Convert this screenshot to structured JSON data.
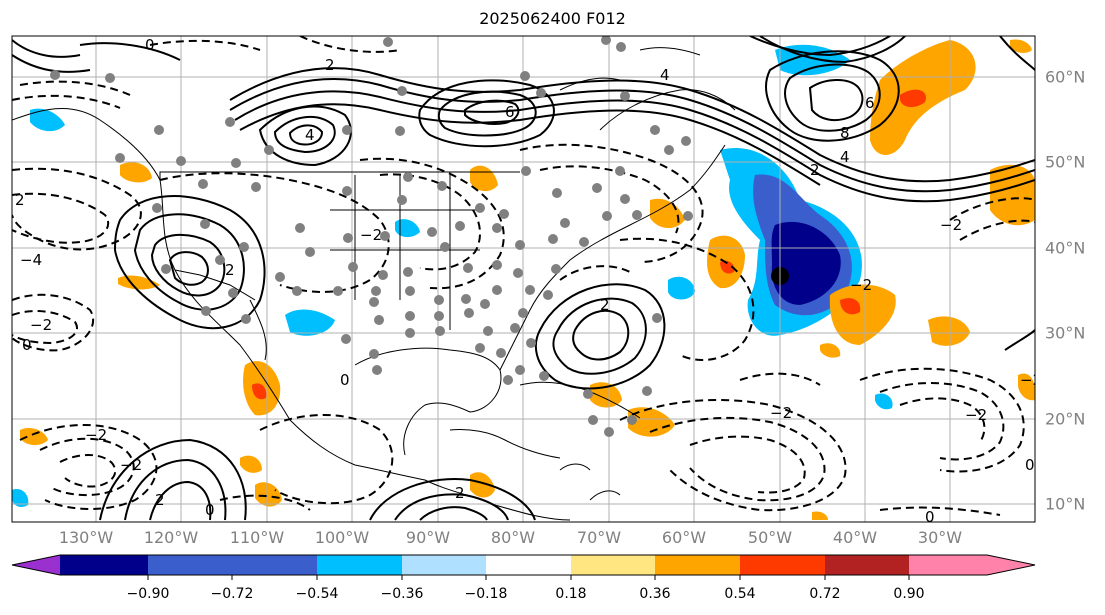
{
  "title": "2025062400 F012",
  "longitude_labels": [
    "130°W",
    "120°W",
    "110°W",
    "100°W",
    "90°W",
    "80°W",
    "70°W",
    "60°W",
    "50°W",
    "40°W",
    "30°W"
  ],
  "latitude_labels": [
    "60°N",
    "50°N",
    "40°N",
    "30°N",
    "20°N",
    "10°N"
  ],
  "colorbar": {
    "ticks": [
      "−0.90",
      "−0.72",
      "−0.54",
      "−0.36",
      "−0.18",
      "0.18",
      "0.36",
      "0.54",
      "0.72",
      "0.90"
    ],
    "colors": [
      "#9b30d0",
      "#00008b",
      "#3a5fcd",
      "#00bfff",
      "#b0e0ff",
      "#ffffff",
      "#ffe680",
      "#ffa500",
      "#ff3a00",
      "#b22222",
      "#ff82ab"
    ]
  },
  "contour_labels": [
    "0",
    "2",
    "4",
    "6",
    "8",
    "−2",
    "−4"
  ],
  "colors": {
    "positive_anomaly": "#ffa500",
    "strong_positive": "#ff3a00",
    "negative_anomaly": "#00bfff",
    "strong_negative": "#3a5fcd",
    "extreme_negative": "#00008b",
    "station_marker": "#808080"
  }
}
